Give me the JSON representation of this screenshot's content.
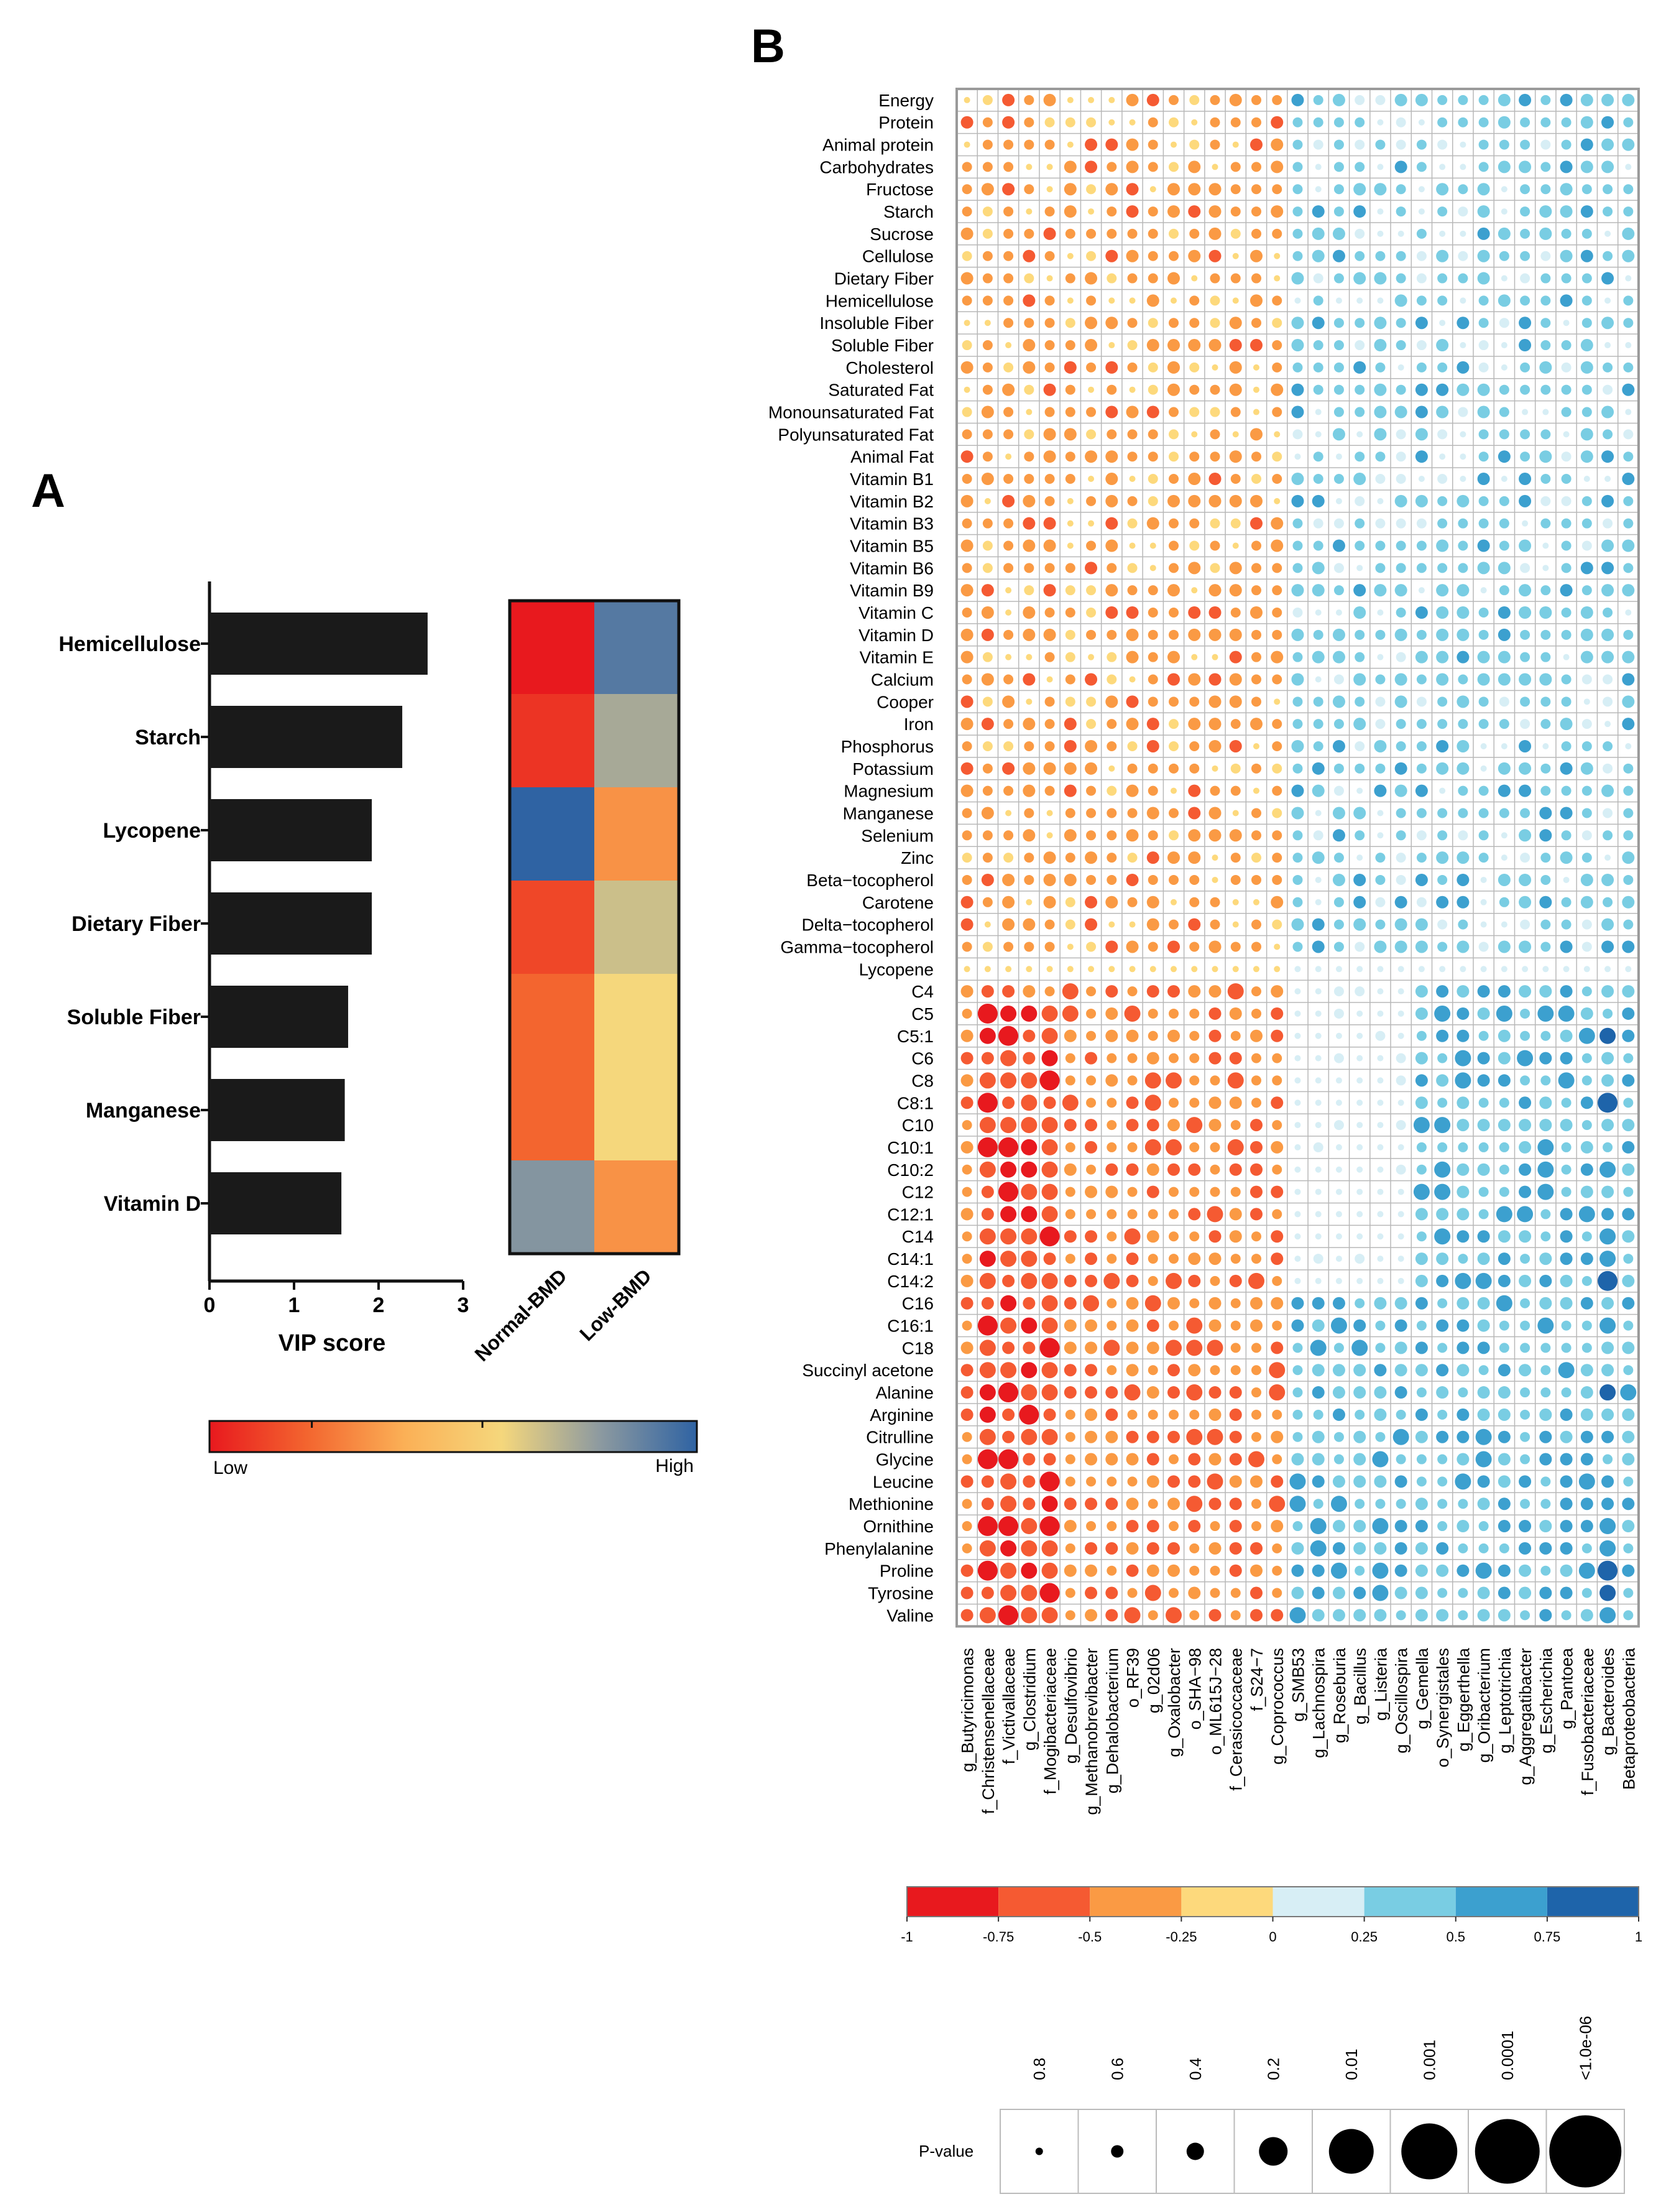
{
  "panel_labels": {
    "a": "A",
    "b": "B"
  },
  "chart_data": [
    {
      "type": "bar",
      "orientation": "horizontal",
      "categories": [
        "Hemicellulose",
        "Starch",
        "Lycopene",
        "Dietary Fiber",
        "Soluble Fiber",
        "Manganese",
        "Vitamin D"
      ],
      "values": [
        2.58,
        2.28,
        1.92,
        1.92,
        1.64,
        1.6,
        1.56
      ],
      "xlabel": "VIP score",
      "xlim": [
        0,
        3
      ],
      "xticks": [
        "0",
        "1",
        "2",
        "3"
      ],
      "bar_color": "#1a1a1a"
    },
    {
      "type": "heatmap",
      "rows": [
        "Hemicellulose",
        "Starch",
        "Lycopene",
        "Dietary Fiber",
        "Soluble Fiber",
        "Manganese",
        "Vitamin D"
      ],
      "columns": [
        "Normal-BMD",
        "Low-BMD"
      ],
      "values": [
        [
          0.0,
          0.92
        ],
        [
          0.07,
          0.75
        ],
        [
          1.0,
          0.32
        ],
        [
          0.12,
          0.68
        ],
        [
          0.2,
          0.6
        ],
        [
          0.2,
          0.6
        ],
        [
          0.82,
          0.32
        ]
      ],
      "colorbar": {
        "low_label": "Low",
        "high_label": "High",
        "colors": [
          "#e8191e",
          "#f3652f",
          "#fbb056",
          "#f5d77c",
          "#8d9aa0",
          "#2f63a3"
        ]
      }
    },
    {
      "type": "heatmap",
      "subtype": "correlation-dot-matrix",
      "rows": [
        "Energy",
        "Protein",
        "Animal protein",
        "Carbohydrates",
        "Fructose",
        "Starch",
        "Sucrose",
        "Cellulose",
        "Dietary Fiber",
        "Hemicellulose",
        "Insoluble Fiber",
        "Soluble Fiber",
        "Cholesterol",
        "Saturated Fat",
        "Monounsaturated Fat",
        "Polyunsaturated Fat",
        "Animal Fat",
        "Vitamin B1",
        "Vitamin B2",
        "Vitamin B3",
        "Vitamin B5",
        "Vitamin B6",
        "Vitamin B9",
        "Vitamin C",
        "Vitamin D",
        "Vitamin E",
        "Calcium",
        "Cooper",
        "Iron",
        "Phosphorus",
        "Potassium",
        "Magnesium",
        "Manganese",
        "Selenium",
        "Zinc",
        "Beta−tocopherol",
        "Carotene",
        "Delta−tocopherol",
        "Gamma−tocopherol",
        "Lycopene",
        "C4",
        "C5",
        "C5:1",
        "C6",
        "C8",
        "C8:1",
        "C10",
        "C10:1",
        "C10:2",
        "C12",
        "C12:1",
        "C14",
        "C14:1",
        "C14:2",
        "C16",
        "C16:1",
        "C18",
        "Succinyl acetone",
        "Alanine",
        "Arginine",
        "Citrulline",
        "Glycine",
        "Leucine",
        "Methionine",
        "Ornithine",
        "Phenylalanine",
        "Proline",
        "Tyrosine",
        "Valine"
      ],
      "columns": [
        "g_Butyricimonas",
        "f_Christensenellaceae",
        "f_Victivallaceae",
        "g_Clostridium",
        "f_Mogibacteriaceae",
        "g_Desulfovibrio",
        "g_Methanobrevibacter",
        "g_Dehalobacterium",
        "o_RF39",
        "g_02d06",
        "g_Oxalobacter",
        "o_SHA−98",
        "o_ML615J−28",
        "f_Cerasicoccaceae",
        "f_S24−7",
        "g_Coprococcus",
        "g_SMB53",
        "g_Lachnospira",
        "g_Roseburia",
        "g_Bacillus",
        "g_Listeria",
        "g_Oscillospira",
        "g_Gemella",
        "o_Synergistales",
        "g_Eggerthella",
        "g_Oribacterium",
        "g_Leptotrichia",
        "g_Aggregatibacter",
        "g_Escherichia",
        "g_Pantoea",
        "f_Fusobacteriaceae",
        "g_Bacteroides",
        "Betaproteobacteria"
      ],
      "color_scale": {
        "ticks": [
          "-1",
          "-0.75",
          "-0.5",
          "-0.25",
          "0",
          "0.25",
          "0.5",
          "0.75",
          "1"
        ],
        "bin_colors": [
          "#e8191e",
          "#f55a32",
          "#fa9a44",
          "#fdd97c",
          "#d7eef5",
          "#79cde3",
          "#3ca0cf",
          "#1e64aa"
        ]
      },
      "size_legend": {
        "title": "P-value",
        "values": [
          "0.8",
          "0.6",
          "0.4",
          "0.2",
          "0.01",
          "0.001",
          "0.0001",
          "<1.0e-06"
        ]
      },
      "value_note": "Correlation sign: negative (red/orange) for the first 16 genera, positive (blue) for the remaining 17; magnitude strongest for C5–Valine rows in columns 2–5 and g_Bacteroides."
    }
  ]
}
